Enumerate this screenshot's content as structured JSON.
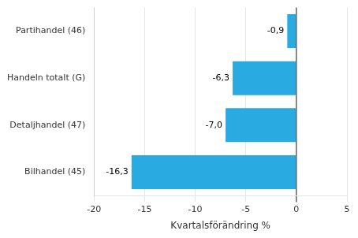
{
  "chart_data": {
    "type": "bar",
    "orientation": "horizontal",
    "categories": [
      "Bilhandel (45)",
      "Detaljhandel (47)",
      "Handeln totalt (G)",
      "Partihandel (46)"
    ],
    "values": [
      -16.3,
      -7.0,
      -6.3,
      -0.9
    ],
    "value_labels": [
      "-16,3",
      "-7,0",
      "-6,3",
      "-0,9"
    ],
    "data_labels": true,
    "color": "#29abe2",
    "xlabel": "Kvartalsförändring %",
    "xlim": [
      -20,
      5
    ],
    "xticks": [
      -20,
      -15,
      -10,
      -5,
      0,
      5
    ],
    "grid": true
  }
}
